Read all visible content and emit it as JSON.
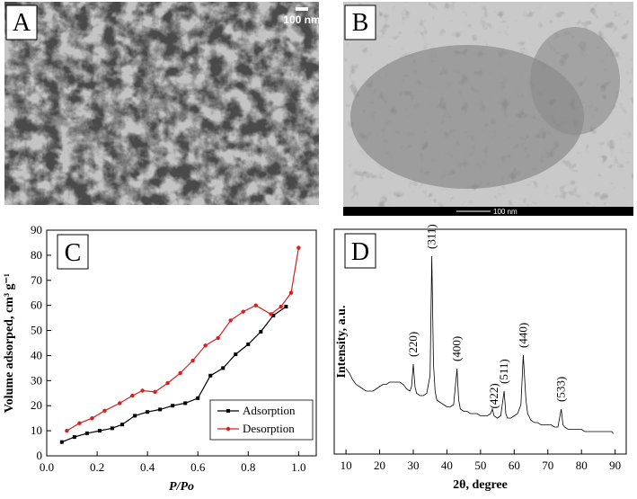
{
  "images": [
    {
      "label": "A",
      "scale_bar": "100 nm"
    },
    {
      "label": "B",
      "scale_bar": "100 nm"
    }
  ],
  "chart_data": [
    {
      "type": "line",
      "panel_label": "C",
      "x_label": "P/Po",
      "y_label": "Volume adsorped, cm³ g⁻¹",
      "xlim": [
        0,
        1.07
      ],
      "ylim": [
        0,
        90
      ],
      "xticks": [
        {
          "value": 0,
          "label": "0.0"
        },
        {
          "value": 0.2,
          "label": "0.2"
        },
        {
          "value": 0.4,
          "label": "0.4"
        },
        {
          "value": 0.6,
          "label": "0.6"
        },
        {
          "value": 0.8,
          "label": "0.8"
        },
        {
          "value": 1,
          "label": "1.0"
        }
      ],
      "yticks": [
        0,
        10,
        20,
        30,
        40,
        50,
        60,
        70,
        80,
        90
      ],
      "legend": "lower right",
      "series": [
        {
          "name": "Adsorption",
          "color": "#000000",
          "marker": "square",
          "x": [
            0.06,
            0.11,
            0.16,
            0.21,
            0.26,
            0.3,
            0.35,
            0.4,
            0.45,
            0.5,
            0.55,
            0.6,
            0.65,
            0.7,
            0.75,
            0.8,
            0.85,
            0.9,
            0.95
          ],
          "values": [
            5.5,
            7.5,
            9,
            10,
            11,
            12.5,
            16,
            17.5,
            18.5,
            20,
            21,
            23,
            32,
            35,
            40.5,
            44.5,
            49.5,
            56,
            59.5
          ]
        },
        {
          "name": "Desorption",
          "color": "#d62020",
          "marker": "circle",
          "x": [
            0.08,
            0.13,
            0.18,
            0.23,
            0.29,
            0.34,
            0.38,
            0.43,
            0.48,
            0.53,
            0.58,
            0.63,
            0.68,
            0.73,
            0.78,
            0.83,
            0.89,
            0.93,
            0.97,
            1.0
          ],
          "values": [
            10,
            13,
            15,
            18,
            21,
            24,
            26,
            25.5,
            29,
            33,
            38,
            44,
            47,
            54,
            57.5,
            60,
            56.5,
            59.5,
            65,
            83
          ]
        }
      ]
    },
    {
      "type": "line",
      "panel_label": "D",
      "x_label": "2θ, degree",
      "y_label": "Intensity, a.u.",
      "xlim": [
        6.5,
        93.3
      ],
      "ylim": [
        0,
        100
      ],
      "xticks": [
        10,
        20,
        30,
        40,
        50,
        60,
        70,
        80,
        90
      ],
      "series": [
        {
          "color": "#000000",
          "x": [
            10,
            11,
            12,
            13,
            14,
            15,
            16,
            17,
            18,
            19,
            20,
            21,
            22,
            23,
            24,
            25,
            26,
            27,
            28,
            29,
            29.5,
            30,
            30.5,
            31,
            32,
            33,
            34,
            35,
            35.5,
            36,
            36.5,
            37,
            38,
            39,
            40,
            41,
            42,
            43,
            43.5,
            44,
            45,
            46,
            47,
            48,
            49,
            50,
            51,
            52,
            53,
            53.5,
            54,
            55,
            56,
            57,
            57.5,
            58,
            59,
            60,
            61,
            62,
            62.7,
            63.5,
            64,
            65,
            66,
            67,
            68,
            69,
            70,
            71,
            72,
            73,
            74,
            74.5,
            75,
            76,
            77,
            78,
            79,
            80,
            81,
            82,
            83,
            84,
            85,
            86,
            87,
            88,
            89,
            89.5
          ],
          "values": [
            38,
            36,
            33,
            31,
            30,
            29,
            28,
            28,
            28,
            29,
            30,
            31,
            31,
            32,
            32,
            32,
            32,
            31,
            29,
            28,
            30,
            40,
            30,
            27,
            26,
            26,
            27,
            35,
            88,
            40,
            28,
            24,
            23,
            22,
            21,
            21,
            22,
            38,
            24,
            20,
            19,
            19,
            18,
            18,
            18,
            17,
            17,
            17,
            18,
            20,
            17,
            16,
            17,
            28,
            18,
            16,
            16,
            17,
            18,
            22,
            44,
            24,
            18,
            15,
            14,
            14,
            13,
            13,
            13,
            13,
            12,
            12,
            20,
            13,
            12,
            11,
            11,
            11,
            11,
            11,
            10,
            10,
            10,
            10,
            10,
            10,
            10,
            10,
            10,
            9
          ]
        }
      ],
      "annotations": [
        {
          "text": "(220)",
          "x": 30
        },
        {
          "text": "(311)",
          "x": 35.5
        },
        {
          "text": "(400)",
          "x": 43
        },
        {
          "text": "(422)",
          "x": 54
        },
        {
          "text": "(511)",
          "x": 57
        },
        {
          "text": "(440)",
          "x": 62.7
        },
        {
          "text": "(533)",
          "x": 74
        }
      ]
    }
  ]
}
